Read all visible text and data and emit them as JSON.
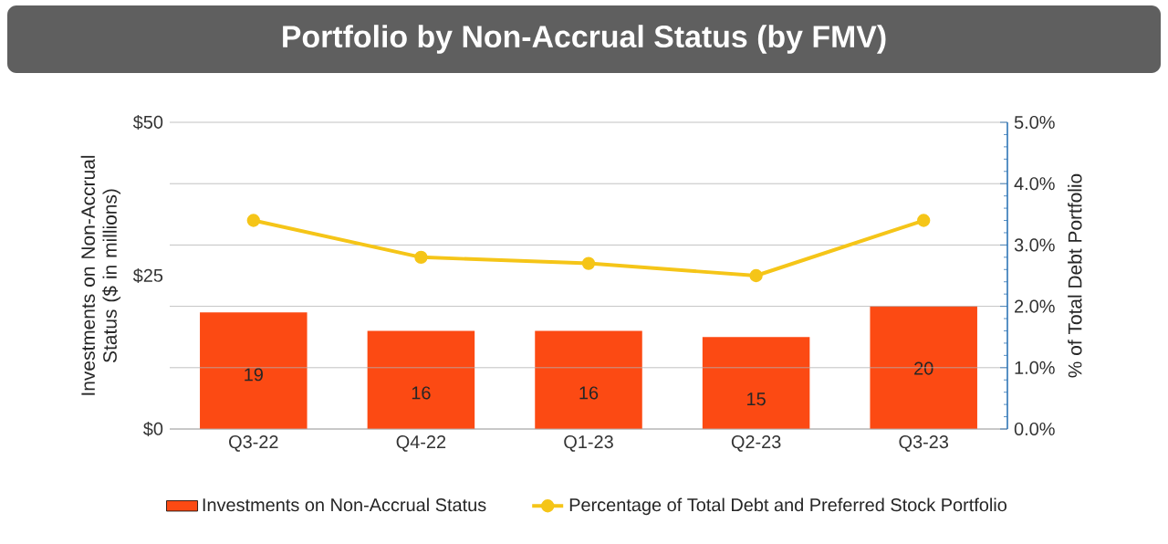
{
  "chart_data": {
    "type": "bar",
    "title": "Portfolio by Non-Accrual Status (by FMV)",
    "categories": [
      "Q3-22",
      "Q4-22",
      "Q1-23",
      "Q2-23",
      "Q3-23"
    ],
    "ylabel": "Investments on Non-Accrual Status ($ in millions)",
    "y2label": "% of Total Debt Portfolio",
    "ylim": [
      0,
      50
    ],
    "yticks": [
      {
        "value": 0,
        "label": "$0"
      },
      {
        "value": 25,
        "label": "$25"
      },
      {
        "value": 50,
        "label": "$50"
      }
    ],
    "y2lim": [
      0,
      5
    ],
    "y2ticks": [
      {
        "value": 0,
        "label": "0.0%"
      },
      {
        "value": 1,
        "label": "1.0%"
      },
      {
        "value": 2,
        "label": "2.0%"
      },
      {
        "value": 3,
        "label": "3.0%"
      },
      {
        "value": 4,
        "label": "4.0%"
      },
      {
        "value": 5,
        "label": "5.0%"
      }
    ],
    "grid": true,
    "legend": "bottom",
    "series": [
      {
        "name": "Investments on Non-Accrual Status",
        "color": "#fc4a13",
        "values": [
          19,
          16,
          16,
          15,
          20
        ],
        "value_labels": [
          "19",
          "16",
          "16",
          "15",
          "20"
        ]
      },
      {
        "name": "Percentage of Total Debt and Preferred Stock Portfolio",
        "type": "line",
        "axis": "y2",
        "marker": "circle",
        "color": "#f5c518",
        "values": [
          3.4,
          2.8,
          2.7,
          2.5,
          3.4
        ]
      }
    ]
  }
}
